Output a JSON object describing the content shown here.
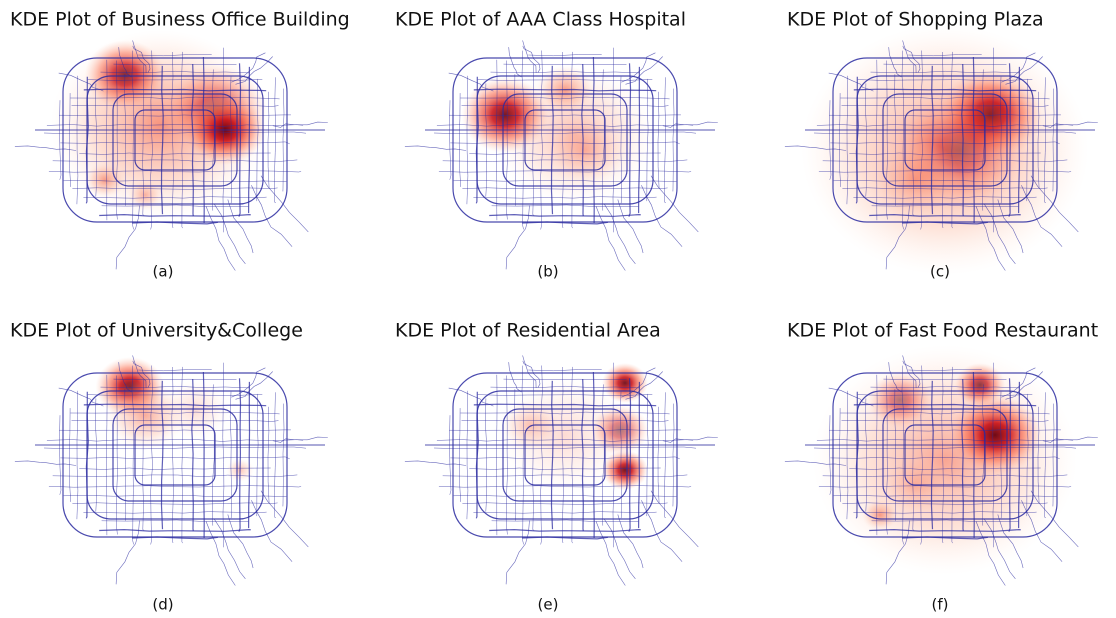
{
  "panels": [
    {
      "title": "KDE Plot of Business Office Building",
      "caption": "(a)"
    },
    {
      "title": "KDE Plot of AAA Class Hospital",
      "caption": "(b)"
    },
    {
      "title": "KDE Plot of Shopping Plaza",
      "caption": "(c)"
    },
    {
      "title": "KDE Plot of University&College",
      "caption": "(d)"
    },
    {
      "title": "KDE Plot of Residential Area",
      "caption": "(e)"
    },
    {
      "title": "KDE Plot of Fast Food Restaurant",
      "caption": "(f)"
    }
  ]
}
